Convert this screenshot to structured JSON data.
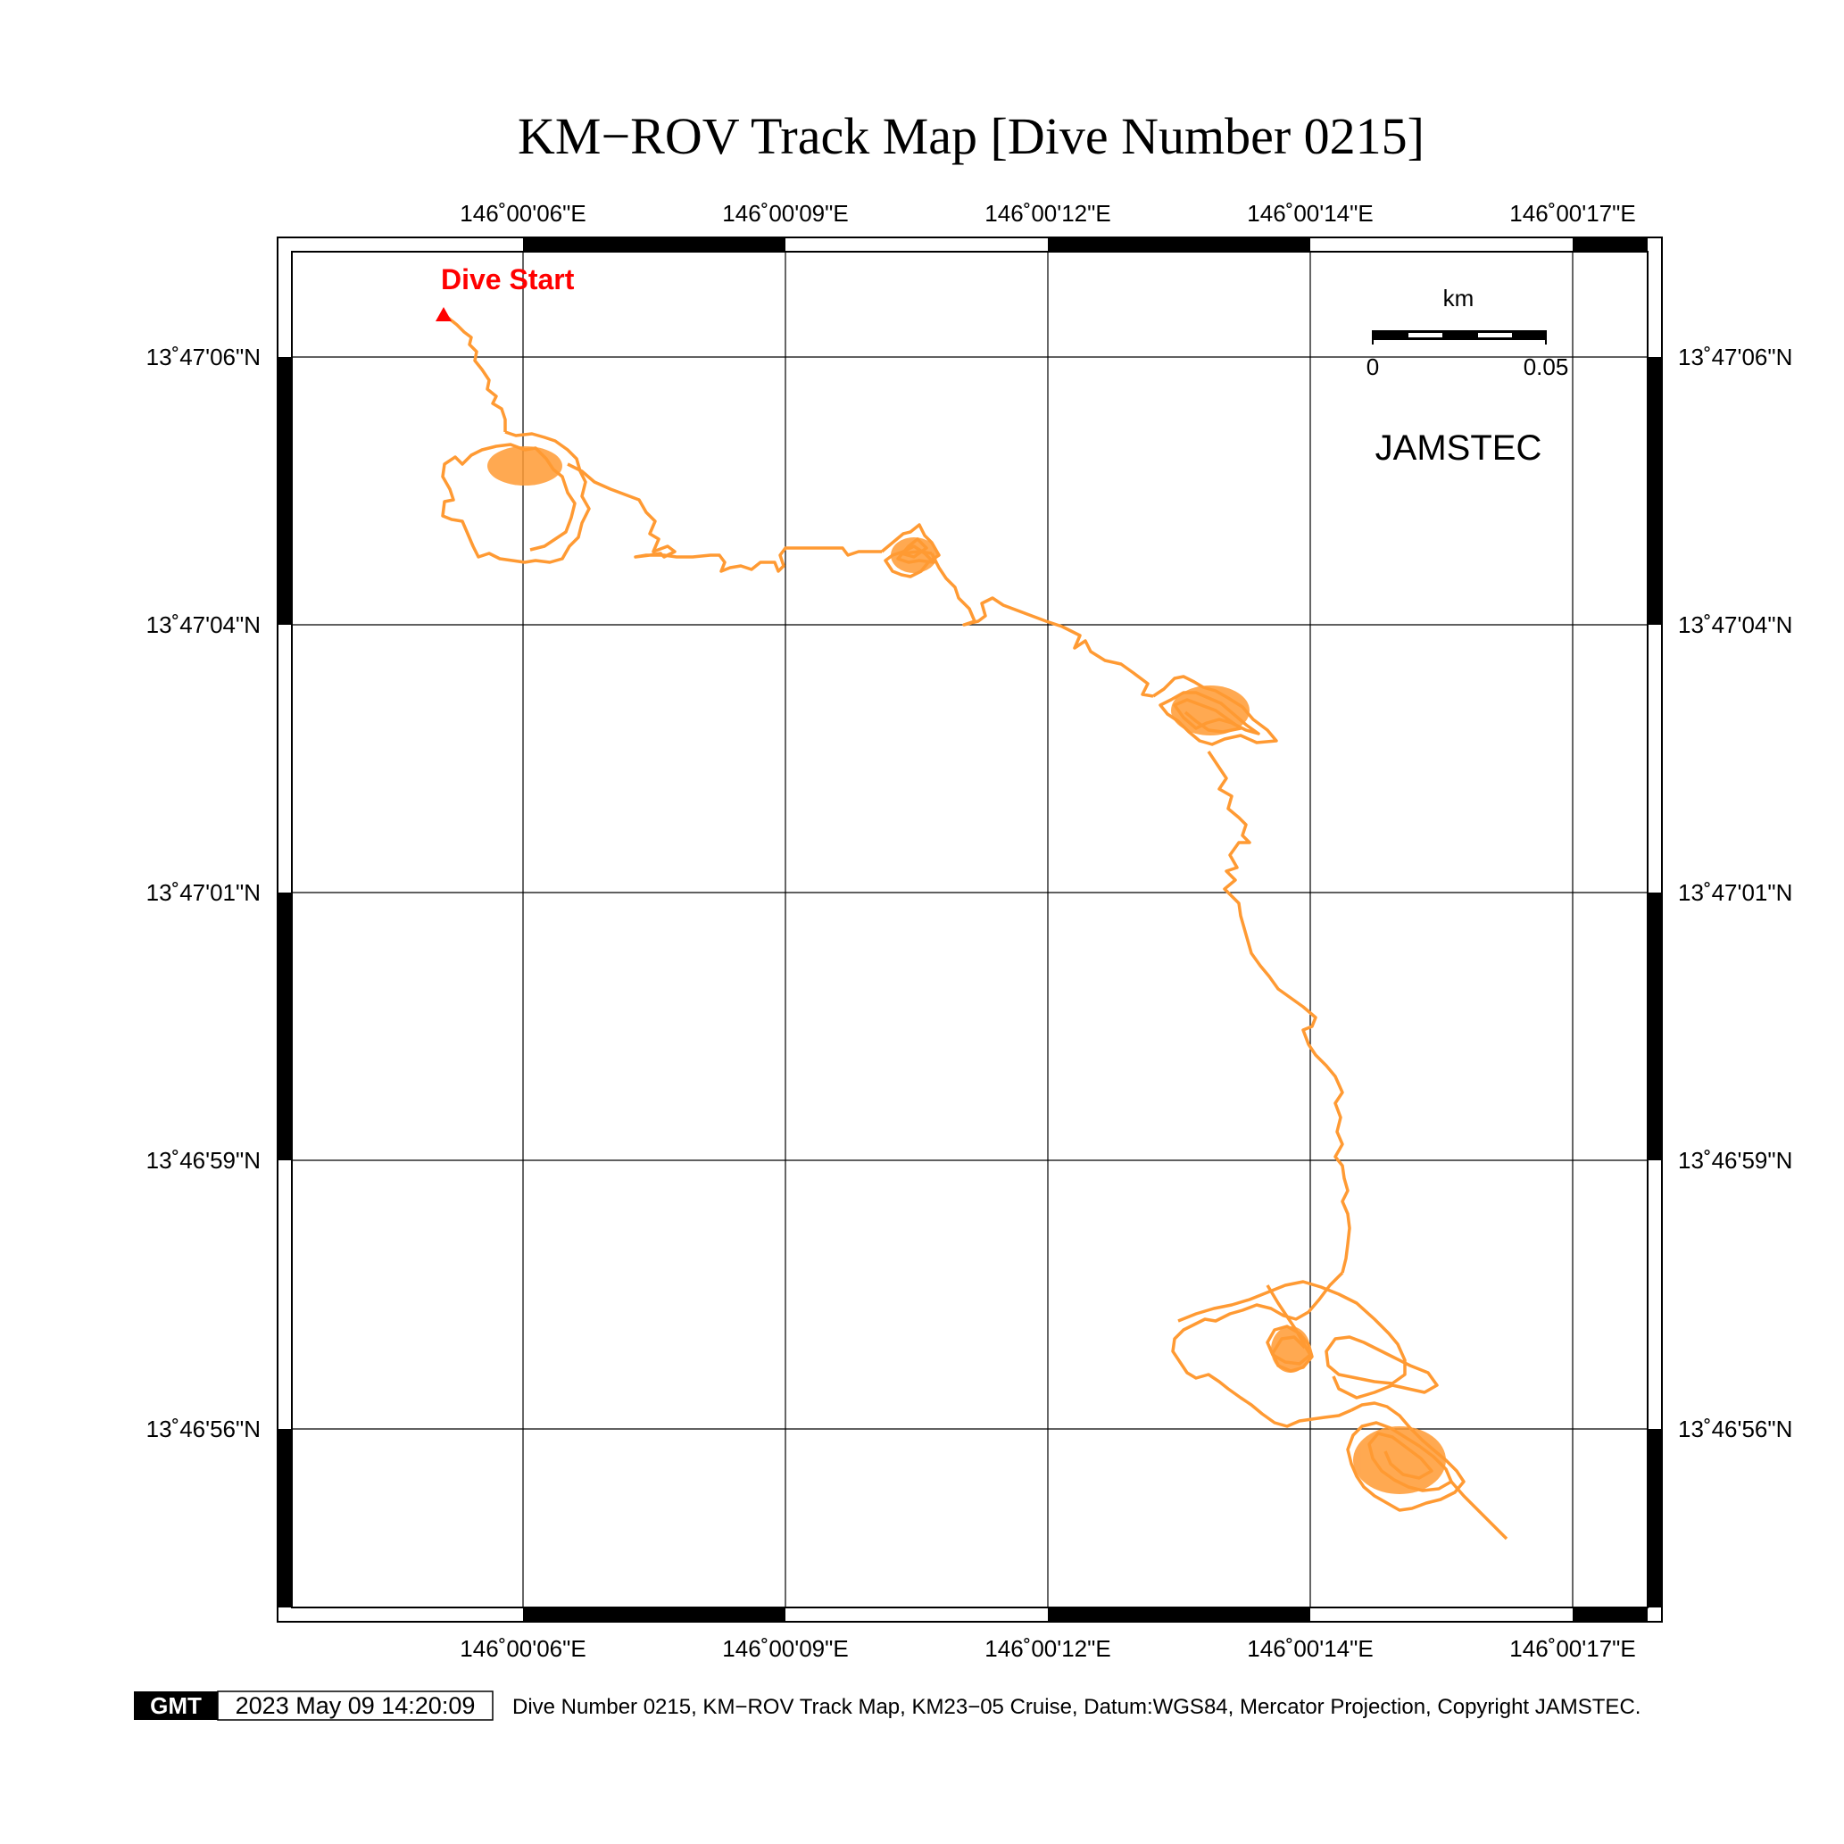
{
  "title": "KM−ROV Track Map [Dive Number 0215]",
  "map": {
    "lon_labels": [
      "146˚00'06\"E",
      "146˚00'09\"E",
      "146˚00'12\"E",
      "146˚00'14\"E",
      "146˚00'17\"E"
    ],
    "lat_labels": [
      "13˚47'06\"N",
      "13˚47'04\"N",
      "13˚47'01\"N",
      "13˚46'59\"N",
      "13˚46'56\"N"
    ],
    "start_label": "Dive Start",
    "start_color": "#ff0000",
    "track_color": "#ff9a33",
    "scale_bar": {
      "unit": "km",
      "min_label": "0",
      "max_label": "0.05"
    },
    "watermark": "JAMSTEC",
    "grid": true
  },
  "footer": {
    "logo": "GMT",
    "timestamp": "2023 May 09 14:20:09",
    "caption": "Dive Number 0215, KM−ROV Track Map, KM23−05 Cruise, Datum:WGS84, Mercator Projection, Copyright JAMSTEC."
  }
}
